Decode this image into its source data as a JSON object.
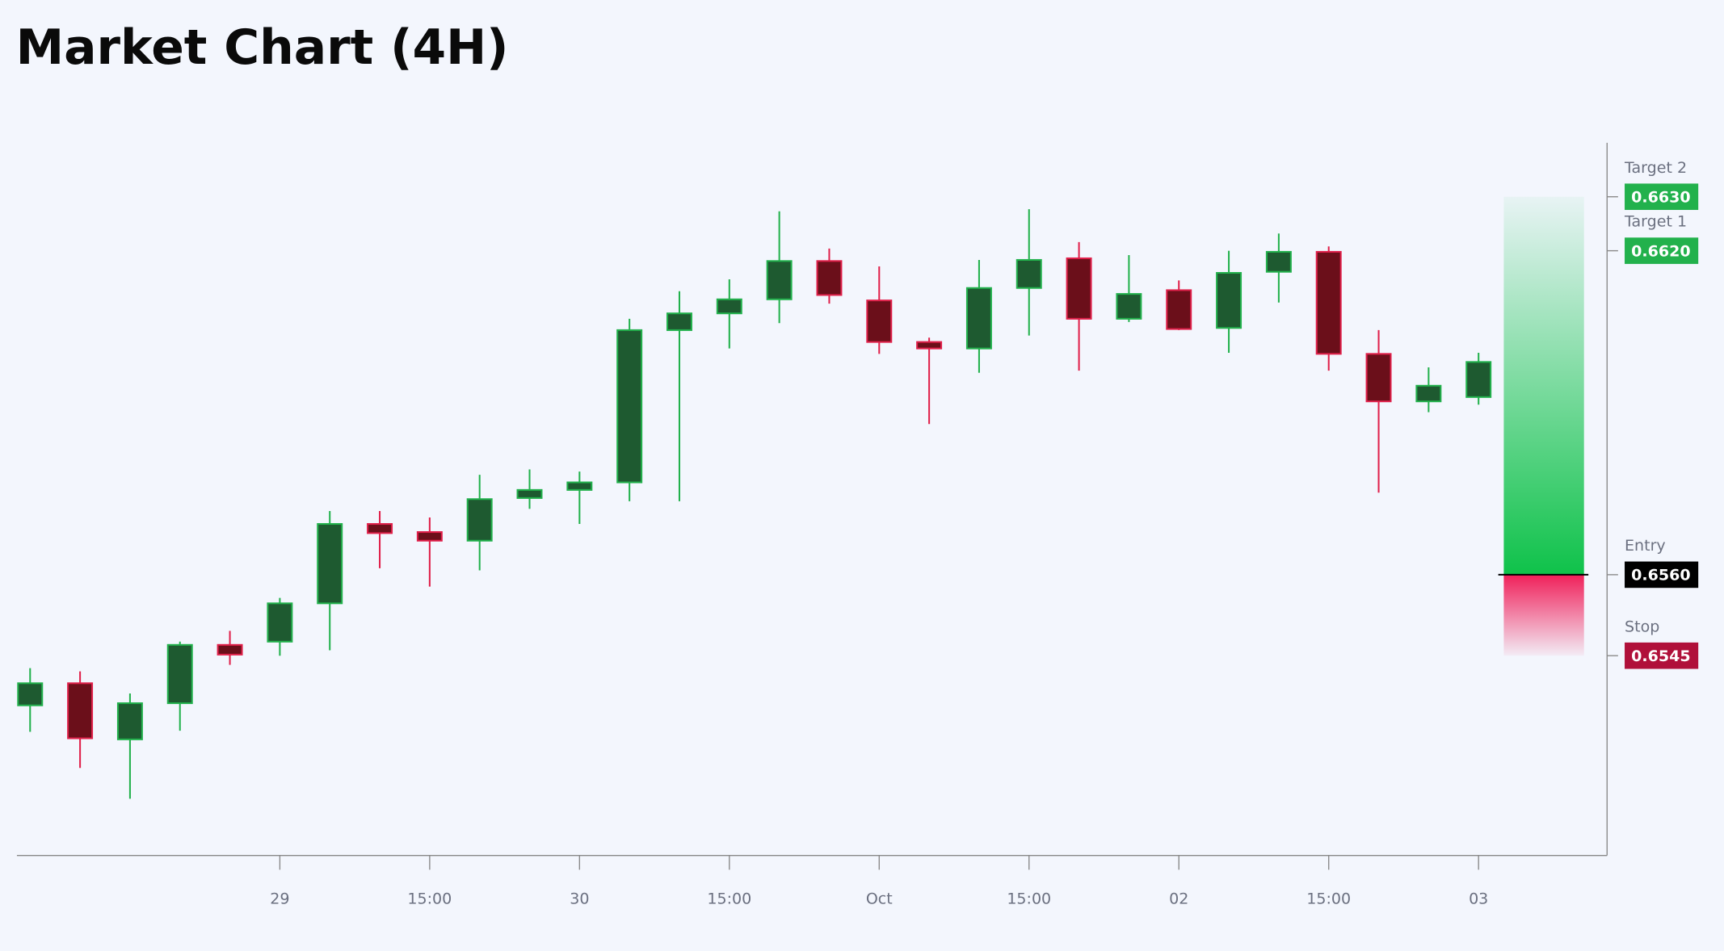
{
  "chart_data": {
    "type": "candlestick",
    "title": "Market Chart (4H)",
    "categories": [
      null,
      null,
      null,
      null,
      null,
      "29",
      null,
      null,
      "15:00",
      null,
      null,
      "30",
      null,
      null,
      "15:00",
      null,
      null,
      "Oct",
      null,
      null,
      "15:00",
      null,
      null,
      "02",
      null,
      null,
      "15:00",
      null,
      null,
      "03"
    ],
    "open": [
      0.65358,
      0.65399,
      0.65295,
      0.65362,
      0.6547,
      0.65476,
      0.65547,
      0.65694,
      0.65679,
      0.65663,
      0.65742,
      0.65757,
      0.65771,
      0.66053,
      0.66084,
      0.6611,
      0.66181,
      0.66108,
      0.66031,
      0.66019,
      0.66131,
      0.66186,
      0.66074,
      0.66127,
      0.66057,
      0.66161,
      0.66198,
      0.66009,
      0.65921,
      0.65929
    ],
    "high": [
      0.65427,
      0.65421,
      0.6538,
      0.65476,
      0.65496,
      0.65557,
      0.65718,
      0.65718,
      0.65706,
      0.65785,
      0.65795,
      0.65791,
      0.66074,
      0.66125,
      0.66147,
      0.66273,
      0.66204,
      0.66171,
      0.66039,
      0.66183,
      0.66277,
      0.66216,
      0.66192,
      0.66145,
      0.662,
      0.66232,
      0.66208,
      0.66053,
      0.65984,
      0.66011
    ],
    "low": [
      0.65309,
      0.65242,
      0.65185,
      0.65311,
      0.65433,
      0.6545,
      0.6546,
      0.65612,
      0.65578,
      0.65608,
      0.65722,
      0.65694,
      0.65736,
      0.65736,
      0.66019,
      0.66066,
      0.66102,
      0.66009,
      0.65879,
      0.65974,
      0.66043,
      0.65978,
      0.66068,
      0.66053,
      0.66011,
      0.66104,
      0.65978,
      0.65752,
      0.65901,
      0.65915
    ],
    "close": [
      0.65399,
      0.65297,
      0.65362,
      0.6547,
      0.65452,
      0.65547,
      0.65694,
      0.65677,
      0.65663,
      0.6574,
      0.65757,
      0.65771,
      0.66053,
      0.66084,
      0.6611,
      0.66181,
      0.66118,
      0.66031,
      0.66019,
      0.66131,
      0.66183,
      0.66074,
      0.6612,
      0.66055,
      0.66159,
      0.66198,
      0.66009,
      0.65921,
      0.6595,
      0.65994
    ],
    "up_color": "#22b14c",
    "down_color": "#e0204a",
    "ylim": [
      0.6508,
      0.664
    ],
    "levels": [
      {
        "name": "Target 2",
        "value": 0.663,
        "value_label": "0.6630",
        "color": "#22b14c"
      },
      {
        "name": "Target 1",
        "value": 0.662,
        "value_label": "0.6620",
        "color": "#22b14c"
      },
      {
        "name": "Entry",
        "value": 0.656,
        "value_label": "0.6560",
        "color": "#000000"
      },
      {
        "name": "Stop",
        "value": 0.6545,
        "value_label": "0.6545",
        "color": "#b0103a"
      }
    ]
  }
}
